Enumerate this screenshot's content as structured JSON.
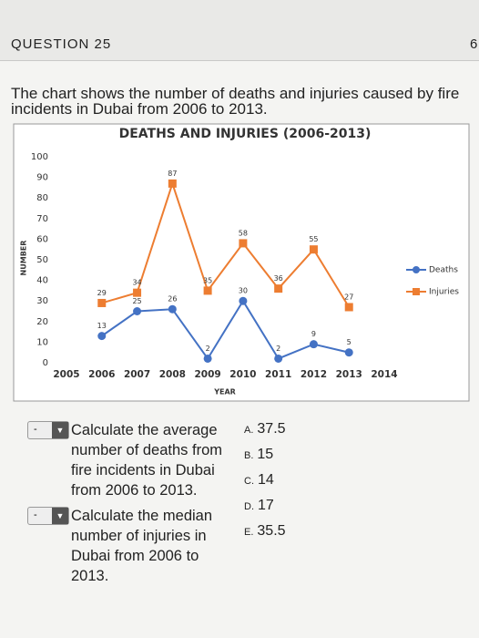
{
  "header": {
    "question": "QUESTION 25",
    "page": "6"
  },
  "prompt": "The chart shows the number of deaths and injuries caused by fire incidents in Dubai from 2006 to 2013.",
  "chart_data": {
    "type": "line",
    "title": "DEATHS AND INJURIES (2006-2013)",
    "y_label": "NUMBER",
    "x_label": "YEAR",
    "x": [
      2006,
      2007,
      2008,
      2009,
      2010,
      2011,
      2012,
      2013
    ],
    "series": [
      {
        "name": "Deaths",
        "color": "#4472c4",
        "marker": "circle",
        "values": [
          13,
          25,
          26,
          2,
          30,
          2,
          9,
          5
        ]
      },
      {
        "name": "Injuries",
        "color": "#ed7d31",
        "marker": "square",
        "values": [
          29,
          34,
          87,
          35,
          58,
          36,
          55,
          27
        ]
      }
    ],
    "xlim": [
      2005,
      2014
    ],
    "xticks": [
      2005,
      2006,
      2007,
      2008,
      2009,
      2010,
      2011,
      2012,
      2013,
      2014
    ],
    "ylim": [
      0,
      100
    ],
    "yticks": [
      0,
      10,
      20,
      30,
      40,
      50,
      60,
      70,
      80,
      90,
      100
    ],
    "legend": "right",
    "data_labels": true
  },
  "questions": [
    {
      "dropdown": "-",
      "text": "Calculate the average number of deaths from fire incidents in Dubai from 2006 to 2013."
    },
    {
      "dropdown": "-",
      "text": "Calculate the median number of injuries in Dubai from 2006 to 2013."
    }
  ],
  "options": [
    {
      "letter": "A.",
      "text": "37.5"
    },
    {
      "letter": "B.",
      "text": "15"
    },
    {
      "letter": "C.",
      "text": "14"
    },
    {
      "letter": "D.",
      "text": "17"
    },
    {
      "letter": "E.",
      "text": "35.5"
    }
  ]
}
